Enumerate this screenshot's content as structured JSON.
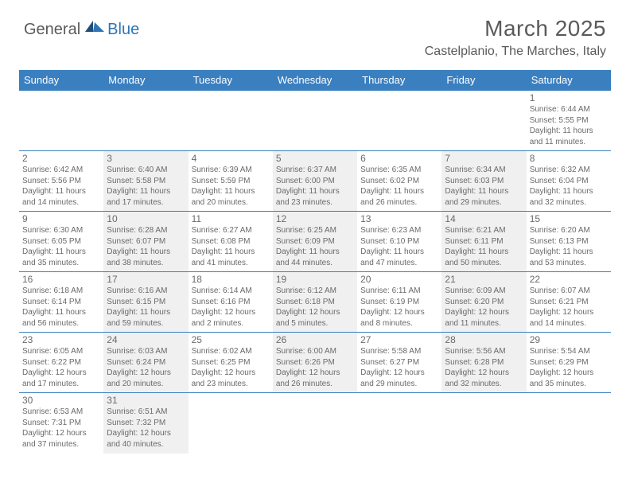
{
  "logo": {
    "text_dark": "General",
    "text_blue": "Blue"
  },
  "header": {
    "title": "March 2025",
    "location": "Castelplanio, The Marches, Italy"
  },
  "colors": {
    "header_bg": "#3a7fc0",
    "header_text": "#ffffff",
    "cell_border": "#3a7fc0",
    "alt_bg": "#f0f0f0",
    "text_gray": "#6a6a6a",
    "logo_dark": "#5a5a5a",
    "logo_blue": "#2e75b6"
  },
  "weekdays": [
    "Sunday",
    "Monday",
    "Tuesday",
    "Wednesday",
    "Thursday",
    "Friday",
    "Saturday"
  ],
  "weeks": [
    [
      null,
      null,
      null,
      null,
      null,
      null,
      {
        "day": "1",
        "sunrise": "Sunrise: 6:44 AM",
        "sunset": "Sunset: 5:55 PM",
        "daylight": "Daylight: 11 hours and 11 minutes."
      }
    ],
    [
      {
        "day": "2",
        "sunrise": "Sunrise: 6:42 AM",
        "sunset": "Sunset: 5:56 PM",
        "daylight": "Daylight: 11 hours and 14 minutes."
      },
      {
        "day": "3",
        "sunrise": "Sunrise: 6:40 AM",
        "sunset": "Sunset: 5:58 PM",
        "daylight": "Daylight: 11 hours and 17 minutes."
      },
      {
        "day": "4",
        "sunrise": "Sunrise: 6:39 AM",
        "sunset": "Sunset: 5:59 PM",
        "daylight": "Daylight: 11 hours and 20 minutes."
      },
      {
        "day": "5",
        "sunrise": "Sunrise: 6:37 AM",
        "sunset": "Sunset: 6:00 PM",
        "daylight": "Daylight: 11 hours and 23 minutes."
      },
      {
        "day": "6",
        "sunrise": "Sunrise: 6:35 AM",
        "sunset": "Sunset: 6:02 PM",
        "daylight": "Daylight: 11 hours and 26 minutes."
      },
      {
        "day": "7",
        "sunrise": "Sunrise: 6:34 AM",
        "sunset": "Sunset: 6:03 PM",
        "daylight": "Daylight: 11 hours and 29 minutes."
      },
      {
        "day": "8",
        "sunrise": "Sunrise: 6:32 AM",
        "sunset": "Sunset: 6:04 PM",
        "daylight": "Daylight: 11 hours and 32 minutes."
      }
    ],
    [
      {
        "day": "9",
        "sunrise": "Sunrise: 6:30 AM",
        "sunset": "Sunset: 6:05 PM",
        "daylight": "Daylight: 11 hours and 35 minutes."
      },
      {
        "day": "10",
        "sunrise": "Sunrise: 6:28 AM",
        "sunset": "Sunset: 6:07 PM",
        "daylight": "Daylight: 11 hours and 38 minutes."
      },
      {
        "day": "11",
        "sunrise": "Sunrise: 6:27 AM",
        "sunset": "Sunset: 6:08 PM",
        "daylight": "Daylight: 11 hours and 41 minutes."
      },
      {
        "day": "12",
        "sunrise": "Sunrise: 6:25 AM",
        "sunset": "Sunset: 6:09 PM",
        "daylight": "Daylight: 11 hours and 44 minutes."
      },
      {
        "day": "13",
        "sunrise": "Sunrise: 6:23 AM",
        "sunset": "Sunset: 6:10 PM",
        "daylight": "Daylight: 11 hours and 47 minutes."
      },
      {
        "day": "14",
        "sunrise": "Sunrise: 6:21 AM",
        "sunset": "Sunset: 6:11 PM",
        "daylight": "Daylight: 11 hours and 50 minutes."
      },
      {
        "day": "15",
        "sunrise": "Sunrise: 6:20 AM",
        "sunset": "Sunset: 6:13 PM",
        "daylight": "Daylight: 11 hours and 53 minutes."
      }
    ],
    [
      {
        "day": "16",
        "sunrise": "Sunrise: 6:18 AM",
        "sunset": "Sunset: 6:14 PM",
        "daylight": "Daylight: 11 hours and 56 minutes."
      },
      {
        "day": "17",
        "sunrise": "Sunrise: 6:16 AM",
        "sunset": "Sunset: 6:15 PM",
        "daylight": "Daylight: 11 hours and 59 minutes."
      },
      {
        "day": "18",
        "sunrise": "Sunrise: 6:14 AM",
        "sunset": "Sunset: 6:16 PM",
        "daylight": "Daylight: 12 hours and 2 minutes."
      },
      {
        "day": "19",
        "sunrise": "Sunrise: 6:12 AM",
        "sunset": "Sunset: 6:18 PM",
        "daylight": "Daylight: 12 hours and 5 minutes."
      },
      {
        "day": "20",
        "sunrise": "Sunrise: 6:11 AM",
        "sunset": "Sunset: 6:19 PM",
        "daylight": "Daylight: 12 hours and 8 minutes."
      },
      {
        "day": "21",
        "sunrise": "Sunrise: 6:09 AM",
        "sunset": "Sunset: 6:20 PM",
        "daylight": "Daylight: 12 hours and 11 minutes."
      },
      {
        "day": "22",
        "sunrise": "Sunrise: 6:07 AM",
        "sunset": "Sunset: 6:21 PM",
        "daylight": "Daylight: 12 hours and 14 minutes."
      }
    ],
    [
      {
        "day": "23",
        "sunrise": "Sunrise: 6:05 AM",
        "sunset": "Sunset: 6:22 PM",
        "daylight": "Daylight: 12 hours and 17 minutes."
      },
      {
        "day": "24",
        "sunrise": "Sunrise: 6:03 AM",
        "sunset": "Sunset: 6:24 PM",
        "daylight": "Daylight: 12 hours and 20 minutes."
      },
      {
        "day": "25",
        "sunrise": "Sunrise: 6:02 AM",
        "sunset": "Sunset: 6:25 PM",
        "daylight": "Daylight: 12 hours and 23 minutes."
      },
      {
        "day": "26",
        "sunrise": "Sunrise: 6:00 AM",
        "sunset": "Sunset: 6:26 PM",
        "daylight": "Daylight: 12 hours and 26 minutes."
      },
      {
        "day": "27",
        "sunrise": "Sunrise: 5:58 AM",
        "sunset": "Sunset: 6:27 PM",
        "daylight": "Daylight: 12 hours and 29 minutes."
      },
      {
        "day": "28",
        "sunrise": "Sunrise: 5:56 AM",
        "sunset": "Sunset: 6:28 PM",
        "daylight": "Daylight: 12 hours and 32 minutes."
      },
      {
        "day": "29",
        "sunrise": "Sunrise: 5:54 AM",
        "sunset": "Sunset: 6:29 PM",
        "daylight": "Daylight: 12 hours and 35 minutes."
      }
    ],
    [
      {
        "day": "30",
        "sunrise": "Sunrise: 6:53 AM",
        "sunset": "Sunset: 7:31 PM",
        "daylight": "Daylight: 12 hours and 37 minutes."
      },
      {
        "day": "31",
        "sunrise": "Sunrise: 6:51 AM",
        "sunset": "Sunset: 7:32 PM",
        "daylight": "Daylight: 12 hours and 40 minutes."
      },
      null,
      null,
      null,
      null,
      null
    ]
  ],
  "alt_pattern": [
    1,
    3,
    5
  ]
}
